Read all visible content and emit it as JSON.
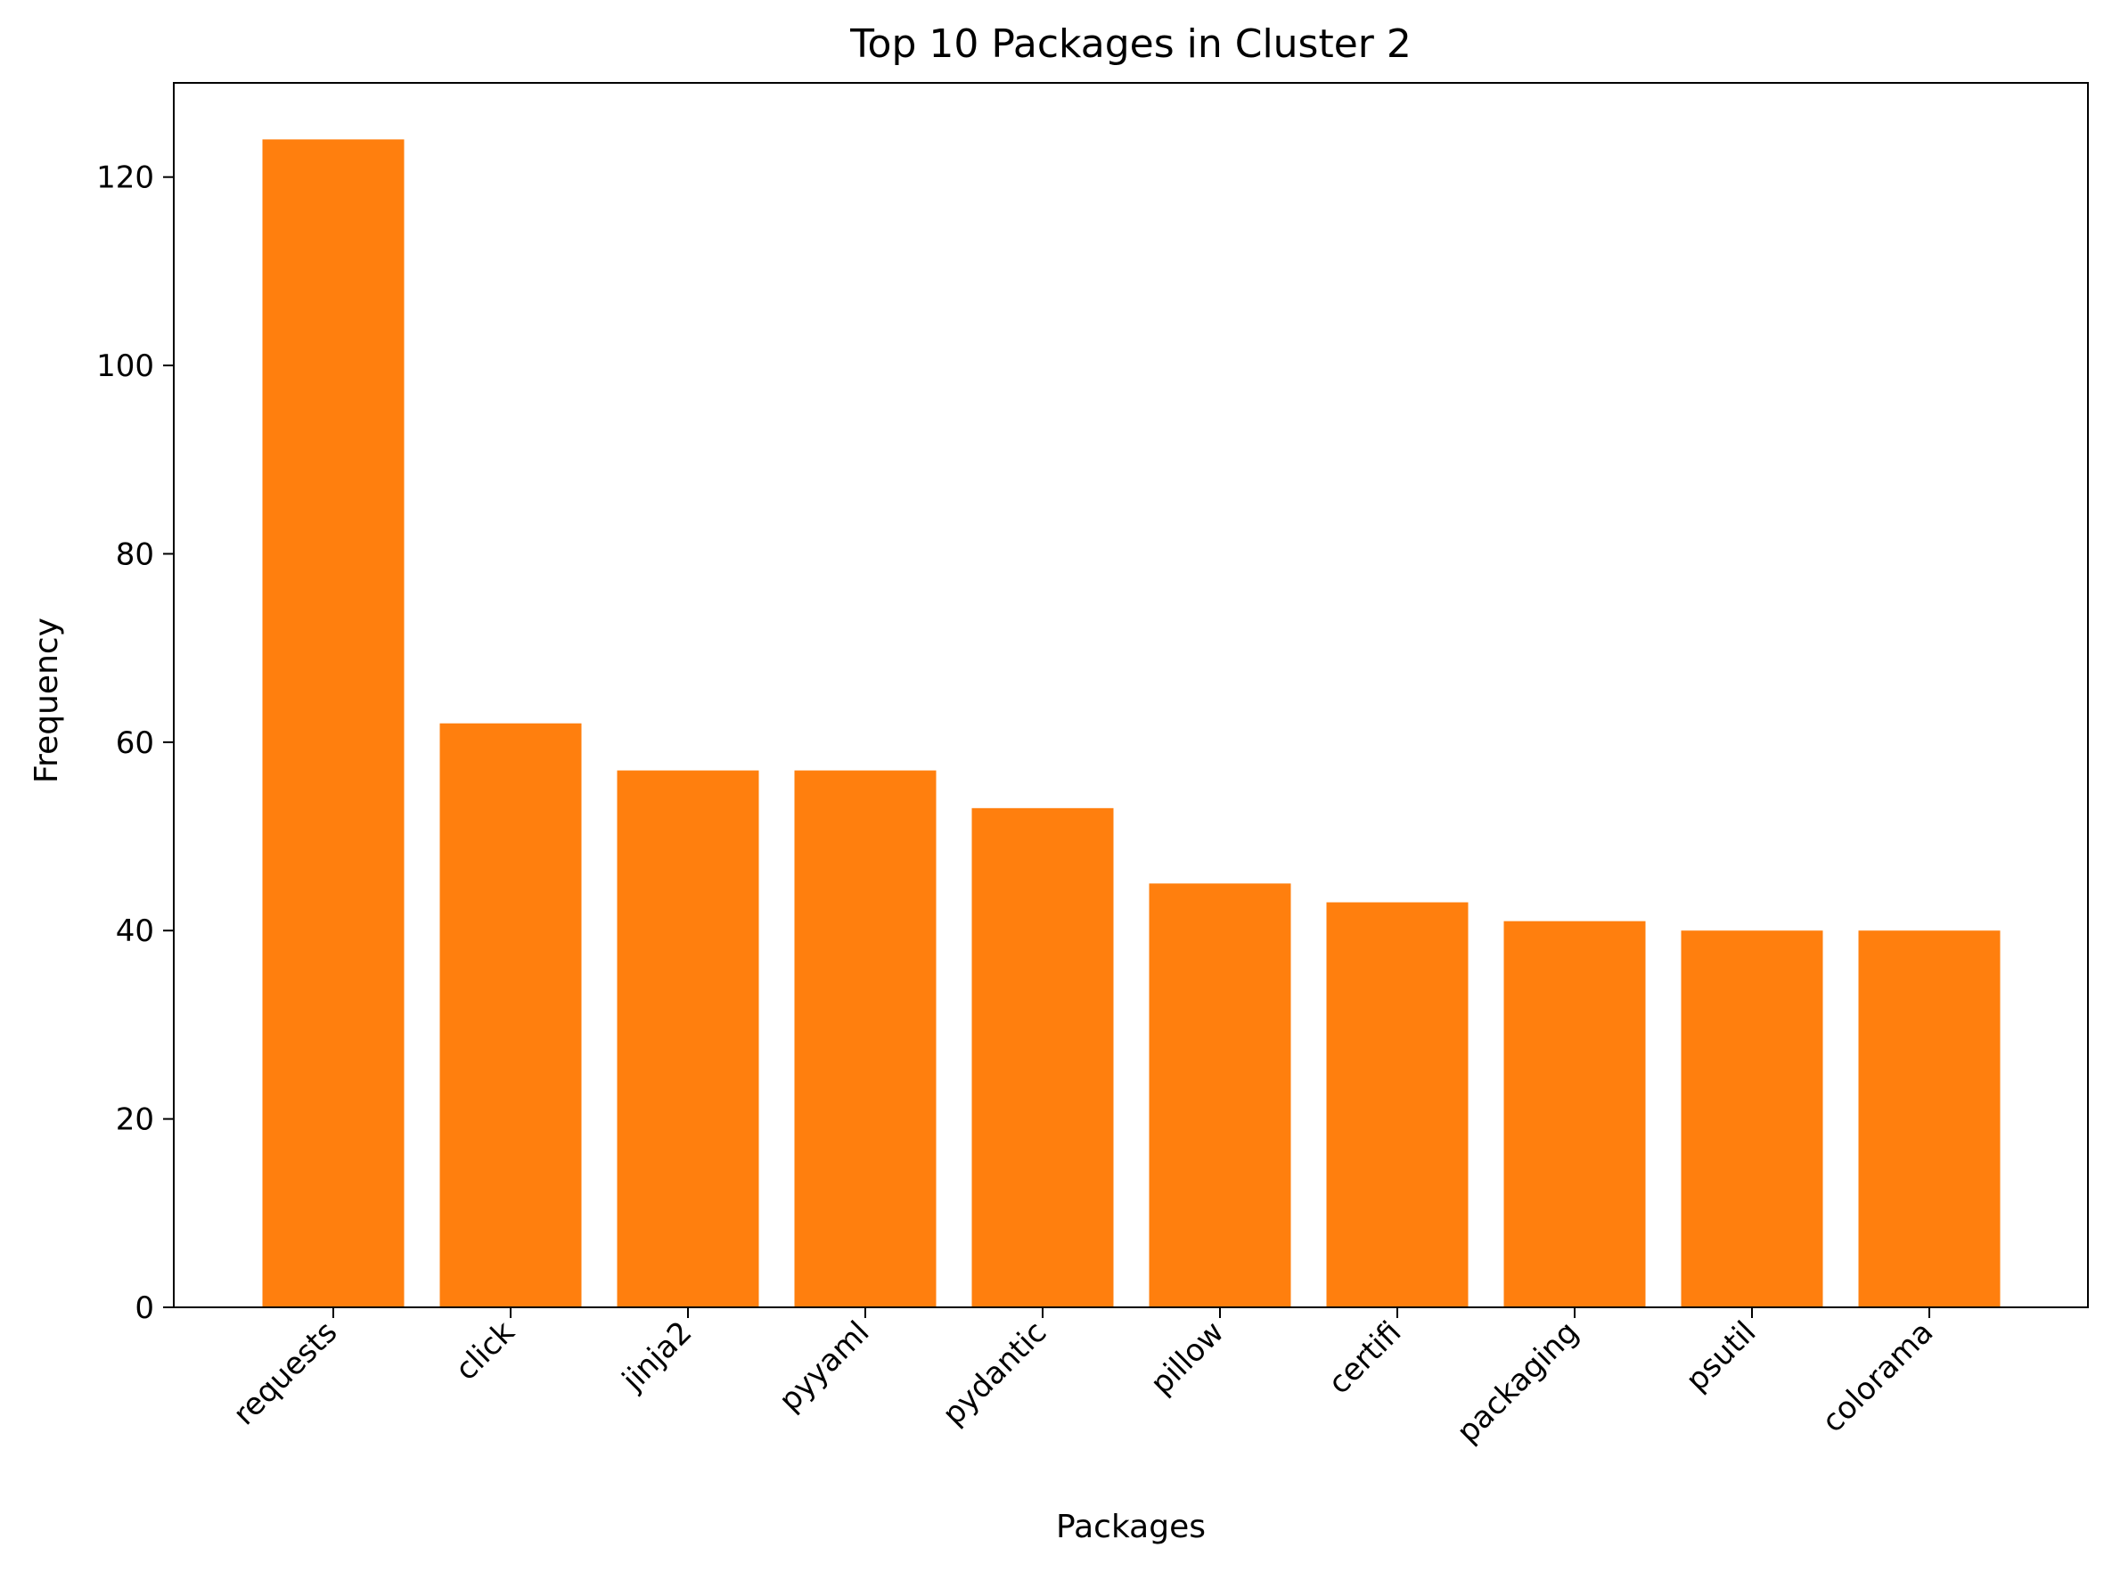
{
  "chart_data": {
    "type": "bar",
    "title": "Top 10 Packages in Cluster 2",
    "xlabel": "Packages",
    "ylabel": "Frequency",
    "categories": [
      "requests",
      "click",
      "jinja2",
      "pyyaml",
      "pydantic",
      "pillow",
      "certifi",
      "packaging",
      "psutil",
      "colorama"
    ],
    "values": [
      124,
      62,
      57,
      57,
      53,
      45,
      43,
      41,
      40,
      40
    ],
    "ylim": [
      0,
      130
    ],
    "yticks": [
      0,
      20,
      40,
      60,
      80,
      100,
      120
    ],
    "bar_color": "#ff7f0e",
    "grid": false,
    "legend": "none",
    "xtick_rotation_deg": 45
  }
}
